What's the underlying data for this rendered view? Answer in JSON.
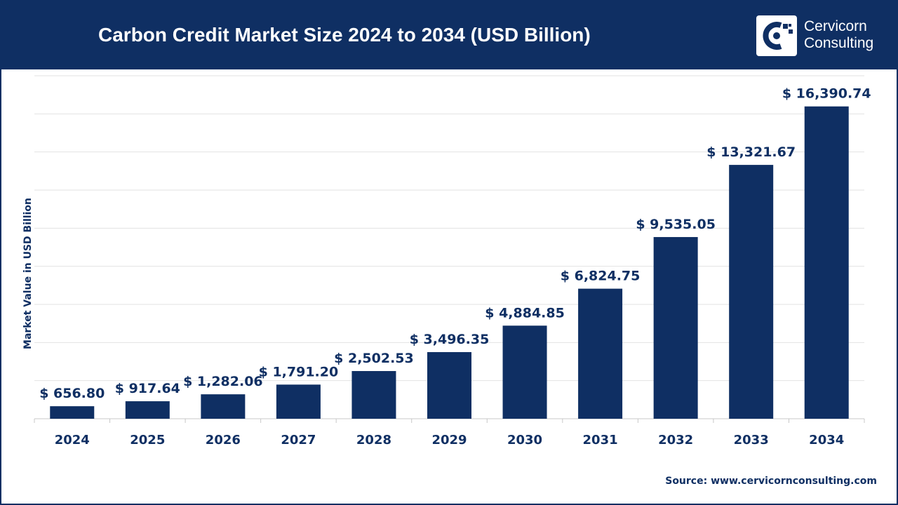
{
  "header": {
    "title": "Carbon Credit Market Size 2024 to 2034 (USD Billion)"
  },
  "logo": {
    "line1": "Cervicorn",
    "line2": "Consulting",
    "icon": "cervicorn-logo-icon"
  },
  "footer": {
    "source": "Source: www.cervicornconsulting.com"
  },
  "colors": {
    "brand": "#0f2f63",
    "bar": "#0f2f63",
    "grid": "#e2e2e2",
    "text": "#0f2f63"
  },
  "chart_data": {
    "type": "bar",
    "title": "Carbon Credit Market Size 2024 to 2034 (USD Billion)",
    "xlabel": "",
    "ylabel": "Market Value in USD Billion",
    "categories": [
      "2024",
      "2025",
      "2026",
      "2027",
      "2028",
      "2029",
      "2030",
      "2031",
      "2032",
      "2033",
      "2034"
    ],
    "values": [
      656.8,
      917.64,
      1282.06,
      1791.2,
      2502.53,
      3496.35,
      4884.85,
      6824.75,
      9535.05,
      13321.67,
      16390.74
    ],
    "data_labels": [
      "$ 656.80",
      "$ 917.64",
      "$ 1,282.06",
      "$ 1,791.20",
      "$ 2,502.53",
      "$ 3,496.35",
      "$ 4,884.85",
      "$ 6,824.75",
      "$ 9,535.05",
      "$ 13,321.67",
      "$ 16,390.74"
    ],
    "ylim": [
      0,
      18000
    ],
    "grid": true,
    "legend": "none"
  }
}
